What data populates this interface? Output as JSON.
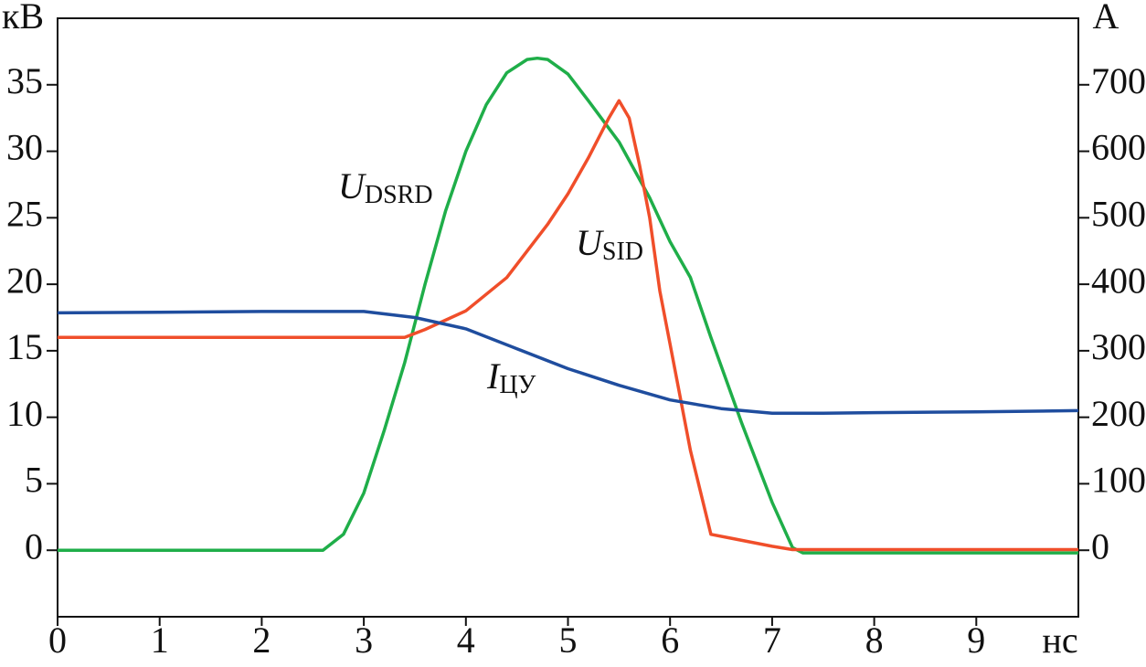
{
  "chart_data": {
    "type": "line",
    "x_label": "нс",
    "y_label": "кВ",
    "y2_label": "A",
    "xlim": [
      0,
      10
    ],
    "xticks": [
      0,
      1,
      2,
      3,
      4,
      5,
      6,
      7,
      8,
      9
    ],
    "ylim": [
      -5,
      40
    ],
    "yticks": [
      0,
      5,
      10,
      15,
      20,
      25,
      30,
      35
    ],
    "y2lim": [
      -100,
      800
    ],
    "y2ticks": [
      0,
      100,
      200,
      300,
      400,
      500,
      600,
      700
    ],
    "series": [
      {
        "name": "U",
        "subscript": "DSRD",
        "color": "#1fae49",
        "x": [
          0,
          2.6,
          2.8,
          3.0,
          3.2,
          3.4,
          3.6,
          3.8,
          4.0,
          4.2,
          4.4,
          4.6,
          4.7,
          4.8,
          5.0,
          5.2,
          5.5,
          5.8,
          6.0,
          6.2,
          6.4,
          6.7,
          7.0,
          7.2,
          7.3,
          8,
          9,
          10
        ],
        "values": [
          0,
          0,
          1.2,
          4.3,
          9,
          14.1,
          20,
          25.5,
          30,
          33.5,
          35.9,
          36.9,
          37.0,
          36.9,
          35.8,
          33.8,
          30.7,
          26.5,
          23.2,
          20.5,
          16,
          9.6,
          3.6,
          0.2,
          -0.2,
          -0.2,
          -0.2,
          -0.2
        ]
      },
      {
        "name": "U",
        "subscript": "SID",
        "color": "#f04e2a",
        "x": [
          0,
          3.4,
          3.6,
          4.0,
          4.4,
          4.8,
          5.0,
          5.2,
          5.4,
          5.5,
          5.6,
          5.7,
          5.8,
          5.9,
          6.0,
          6.2,
          6.4,
          6.6,
          7.0,
          7.2,
          8,
          10
        ],
        "values": [
          16,
          16,
          16.6,
          18,
          20.5,
          24.5,
          26.8,
          29.5,
          32.5,
          33.8,
          32.5,
          29,
          25,
          19.5,
          15.5,
          7.5,
          1.2,
          0.9,
          0.3,
          0.05,
          0.05,
          0.05
        ]
      },
      {
        "name": "I",
        "subscript": "ЦУ",
        "color": "#1f4d9e",
        "axis": "y2",
        "x": [
          0,
          1,
          2,
          3.0,
          3.5,
          4.0,
          4.5,
          5.0,
          5.5,
          6.0,
          6.5,
          7.0,
          7.5,
          8,
          9,
          10
        ],
        "values": [
          357,
          358,
          359,
          359,
          350,
          333,
          303,
          273,
          248,
          226,
          213,
          206,
          206,
          207,
          208,
          210
        ]
      }
    ]
  }
}
